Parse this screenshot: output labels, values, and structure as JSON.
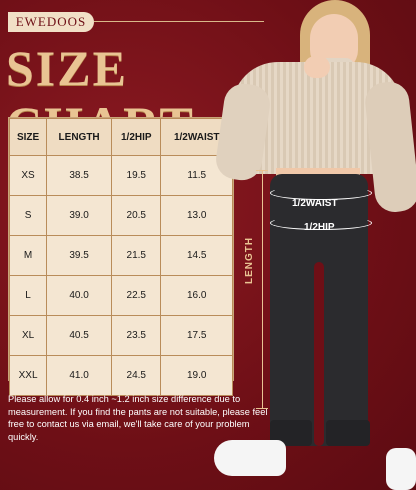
{
  "brand": "EWEDOOS",
  "title": "SIZE CHART",
  "table": {
    "headers": [
      "SIZE",
      "LENGTH",
      "1/2HIP",
      "1/2WAIST"
    ],
    "rows": [
      [
        "XS",
        "38.5",
        "19.5",
        "11.5"
      ],
      [
        "S",
        "39.0",
        "20.5",
        "13.0"
      ],
      [
        "M",
        "39.5",
        "21.5",
        "14.5"
      ],
      [
        "L",
        "40.0",
        "22.5",
        "16.0"
      ],
      [
        "XL",
        "40.5",
        "23.5",
        "17.5"
      ],
      [
        "XXL",
        "41.0",
        "24.5",
        "19.0"
      ]
    ]
  },
  "note": "Please allow for 0.4 inch ~1.2 inch size difference due to measurement. If you find the pants are not suitable, please feel free to contact us via email, we'll take care of your problem quickly.",
  "measure_labels": {
    "waist": "1/2WAIST",
    "hip": "1/2HIP",
    "length": "LENGTH"
  },
  "colors": {
    "background": "#7a1219",
    "accent": "#e9c493",
    "table_bg": "#f1e2cd"
  }
}
